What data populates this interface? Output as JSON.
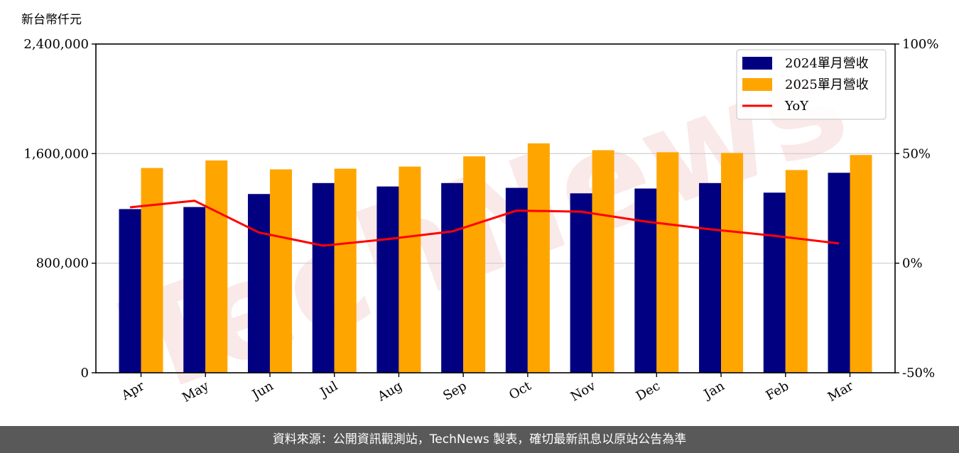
{
  "chart_data": {
    "type": "bar",
    "ylabel": "新台幣仟元",
    "categories": [
      "Apr",
      "May",
      "Jun",
      "Jul",
      "Aug",
      "Sep",
      "Oct",
      "Nov",
      "Dec",
      "Jan",
      "Feb",
      "Mar"
    ],
    "series": [
      {
        "name": "2024單月營收",
        "type": "bar",
        "color": "#000080",
        "values": [
          1195000,
          1210000,
          1305000,
          1385000,
          1360000,
          1385000,
          1350000,
          1310000,
          1345000,
          1385000,
          1315000,
          1460000
        ]
      },
      {
        "name": "2025單月營收",
        "type": "bar",
        "color": "#ffa500",
        "values": [
          1495000,
          1550000,
          1485000,
          1490000,
          1505000,
          1580000,
          1675000,
          1625000,
          1610000,
          1605000,
          1480000,
          1590000
        ]
      },
      {
        "name": "YoY",
        "type": "line",
        "axis": "right",
        "color": "#ff0000",
        "values": [
          25.5,
          28.5,
          14,
          8,
          11,
          14.5,
          24,
          23.5,
          19,
          15.5,
          12.5,
          9
        ]
      }
    ],
    "ylim": [
      0,
      2400000
    ],
    "yticks": [
      "0",
      "800,000",
      "1,600,000",
      "2,400,000"
    ],
    "y2lim": [
      -50,
      100
    ],
    "y2ticks": [
      "-50%",
      "0%",
      "50%",
      "100%"
    ],
    "grid": "horizontal",
    "legend": "top-right"
  },
  "watermark": "TechNews",
  "footer": "資料來源：公開資訊觀測站，TechNews 製表，確切最新訊息以原站公告為準"
}
